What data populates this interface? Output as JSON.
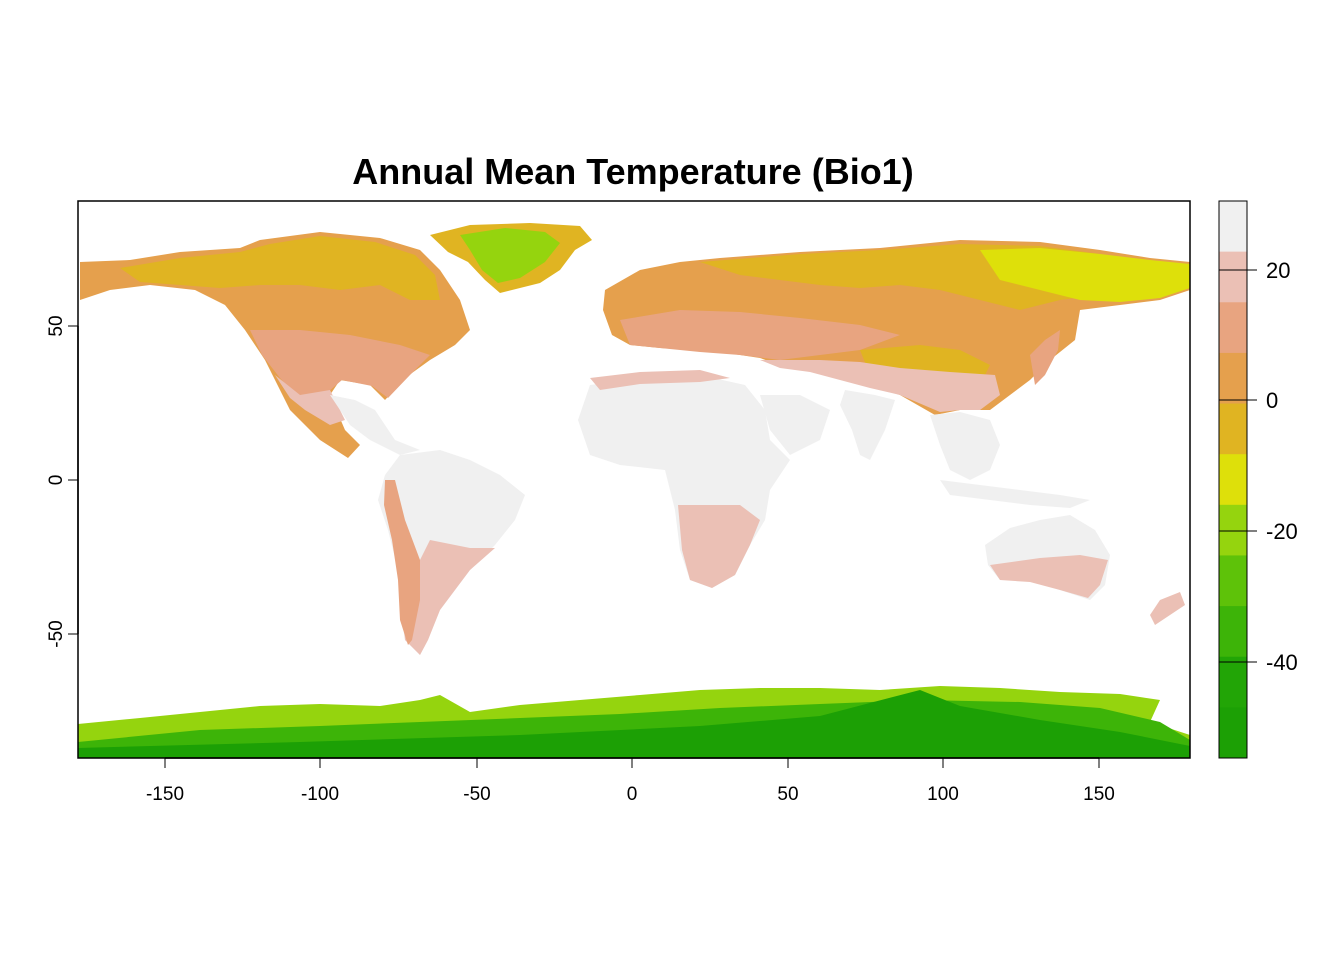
{
  "map": {
    "title": "Annual Mean Temperature (Bio1)",
    "x_ticks": [
      "-150",
      "-100",
      "-50",
      "0",
      "50",
      "100",
      "150"
    ],
    "y_ticks": [
      "50",
      "0",
      "-50"
    ],
    "legend": {
      "labels": [
        "20",
        "0",
        "-20",
        "-40"
      ],
      "colors": [
        "#F0F0F0",
        "#EBC0B5",
        "#E8A480",
        "#E5A04D",
        "#E0B422",
        "#DEE00A",
        "#95D40E",
        "#5EC209",
        "#3DB408",
        "#22A506",
        "#1CA005"
      ]
    },
    "colors": {
      "ocean": "#FFFFFF",
      "very_hot": "#F0F0F0",
      "hot": "#EBC0B5",
      "warm": "#E8A480",
      "mild": "#E5A04D",
      "cool": "#E0B422",
      "cold": "#DEE00A",
      "ice": "#95D40E",
      "ice_deep": "#3DB408",
      "ice_deepest": "#1CA005"
    }
  }
}
